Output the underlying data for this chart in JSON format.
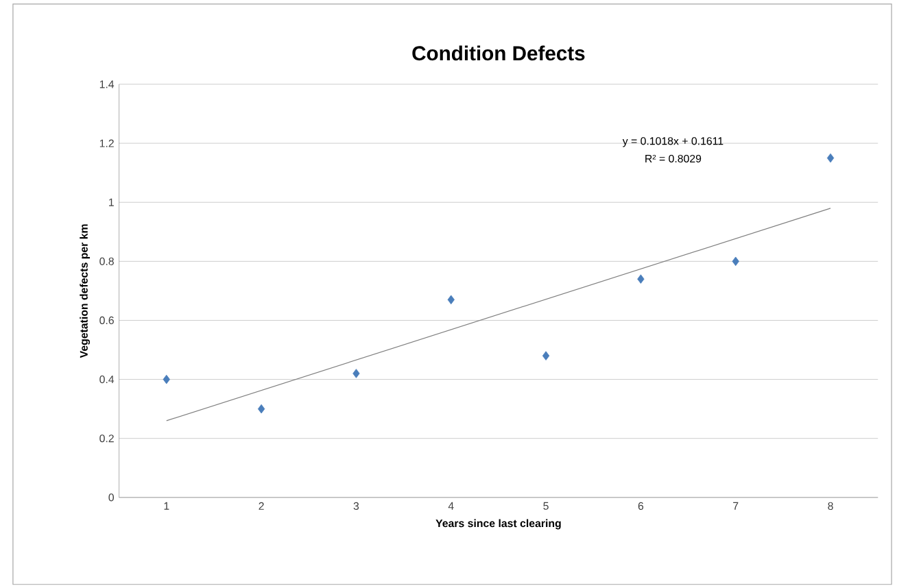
{
  "chart_data": {
    "type": "scatter",
    "title": "Condition Defects",
    "xlabel": "Years since last clearing",
    "ylabel": "Vegetation defects per km",
    "xlim": [
      0.5,
      8.5
    ],
    "xticks": [
      1,
      2,
      3,
      4,
      5,
      6,
      7,
      8
    ],
    "ylim": [
      0,
      1.4
    ],
    "yticks": [
      0,
      {
        "value": 0.2,
        "label": "0.2"
      },
      {
        "value": 0.4,
        "label": "0.4"
      },
      {
        "value": 0.6,
        "label": "0.6"
      },
      {
        "value": 0.8,
        "label": "0.8"
      },
      1,
      {
        "value": 1.2,
        "label": "1.2"
      },
      {
        "value": 1.4,
        "label": "1.4"
      }
    ],
    "grid": "y",
    "marker": "diamond",
    "series": [
      {
        "color": "#4a7ebb",
        "x": [
          1,
          2,
          3,
          4,
          5,
          6,
          7,
          8
        ],
        "values": [
          0.4,
          0.3,
          0.42,
          0.67,
          0.48,
          0.74,
          0.8,
          1.15
        ]
      },
      {
        "type": "line",
        "color": "#7f7f7f",
        "marker": "none",
        "line_style": "solid",
        "x": [
          1,
          8
        ],
        "values": [
          0.26,
          0.98
        ]
      }
    ],
    "annotations": [
      "y = 0.1018x + 0.1611",
      "R² = 0.8029"
    ]
  }
}
